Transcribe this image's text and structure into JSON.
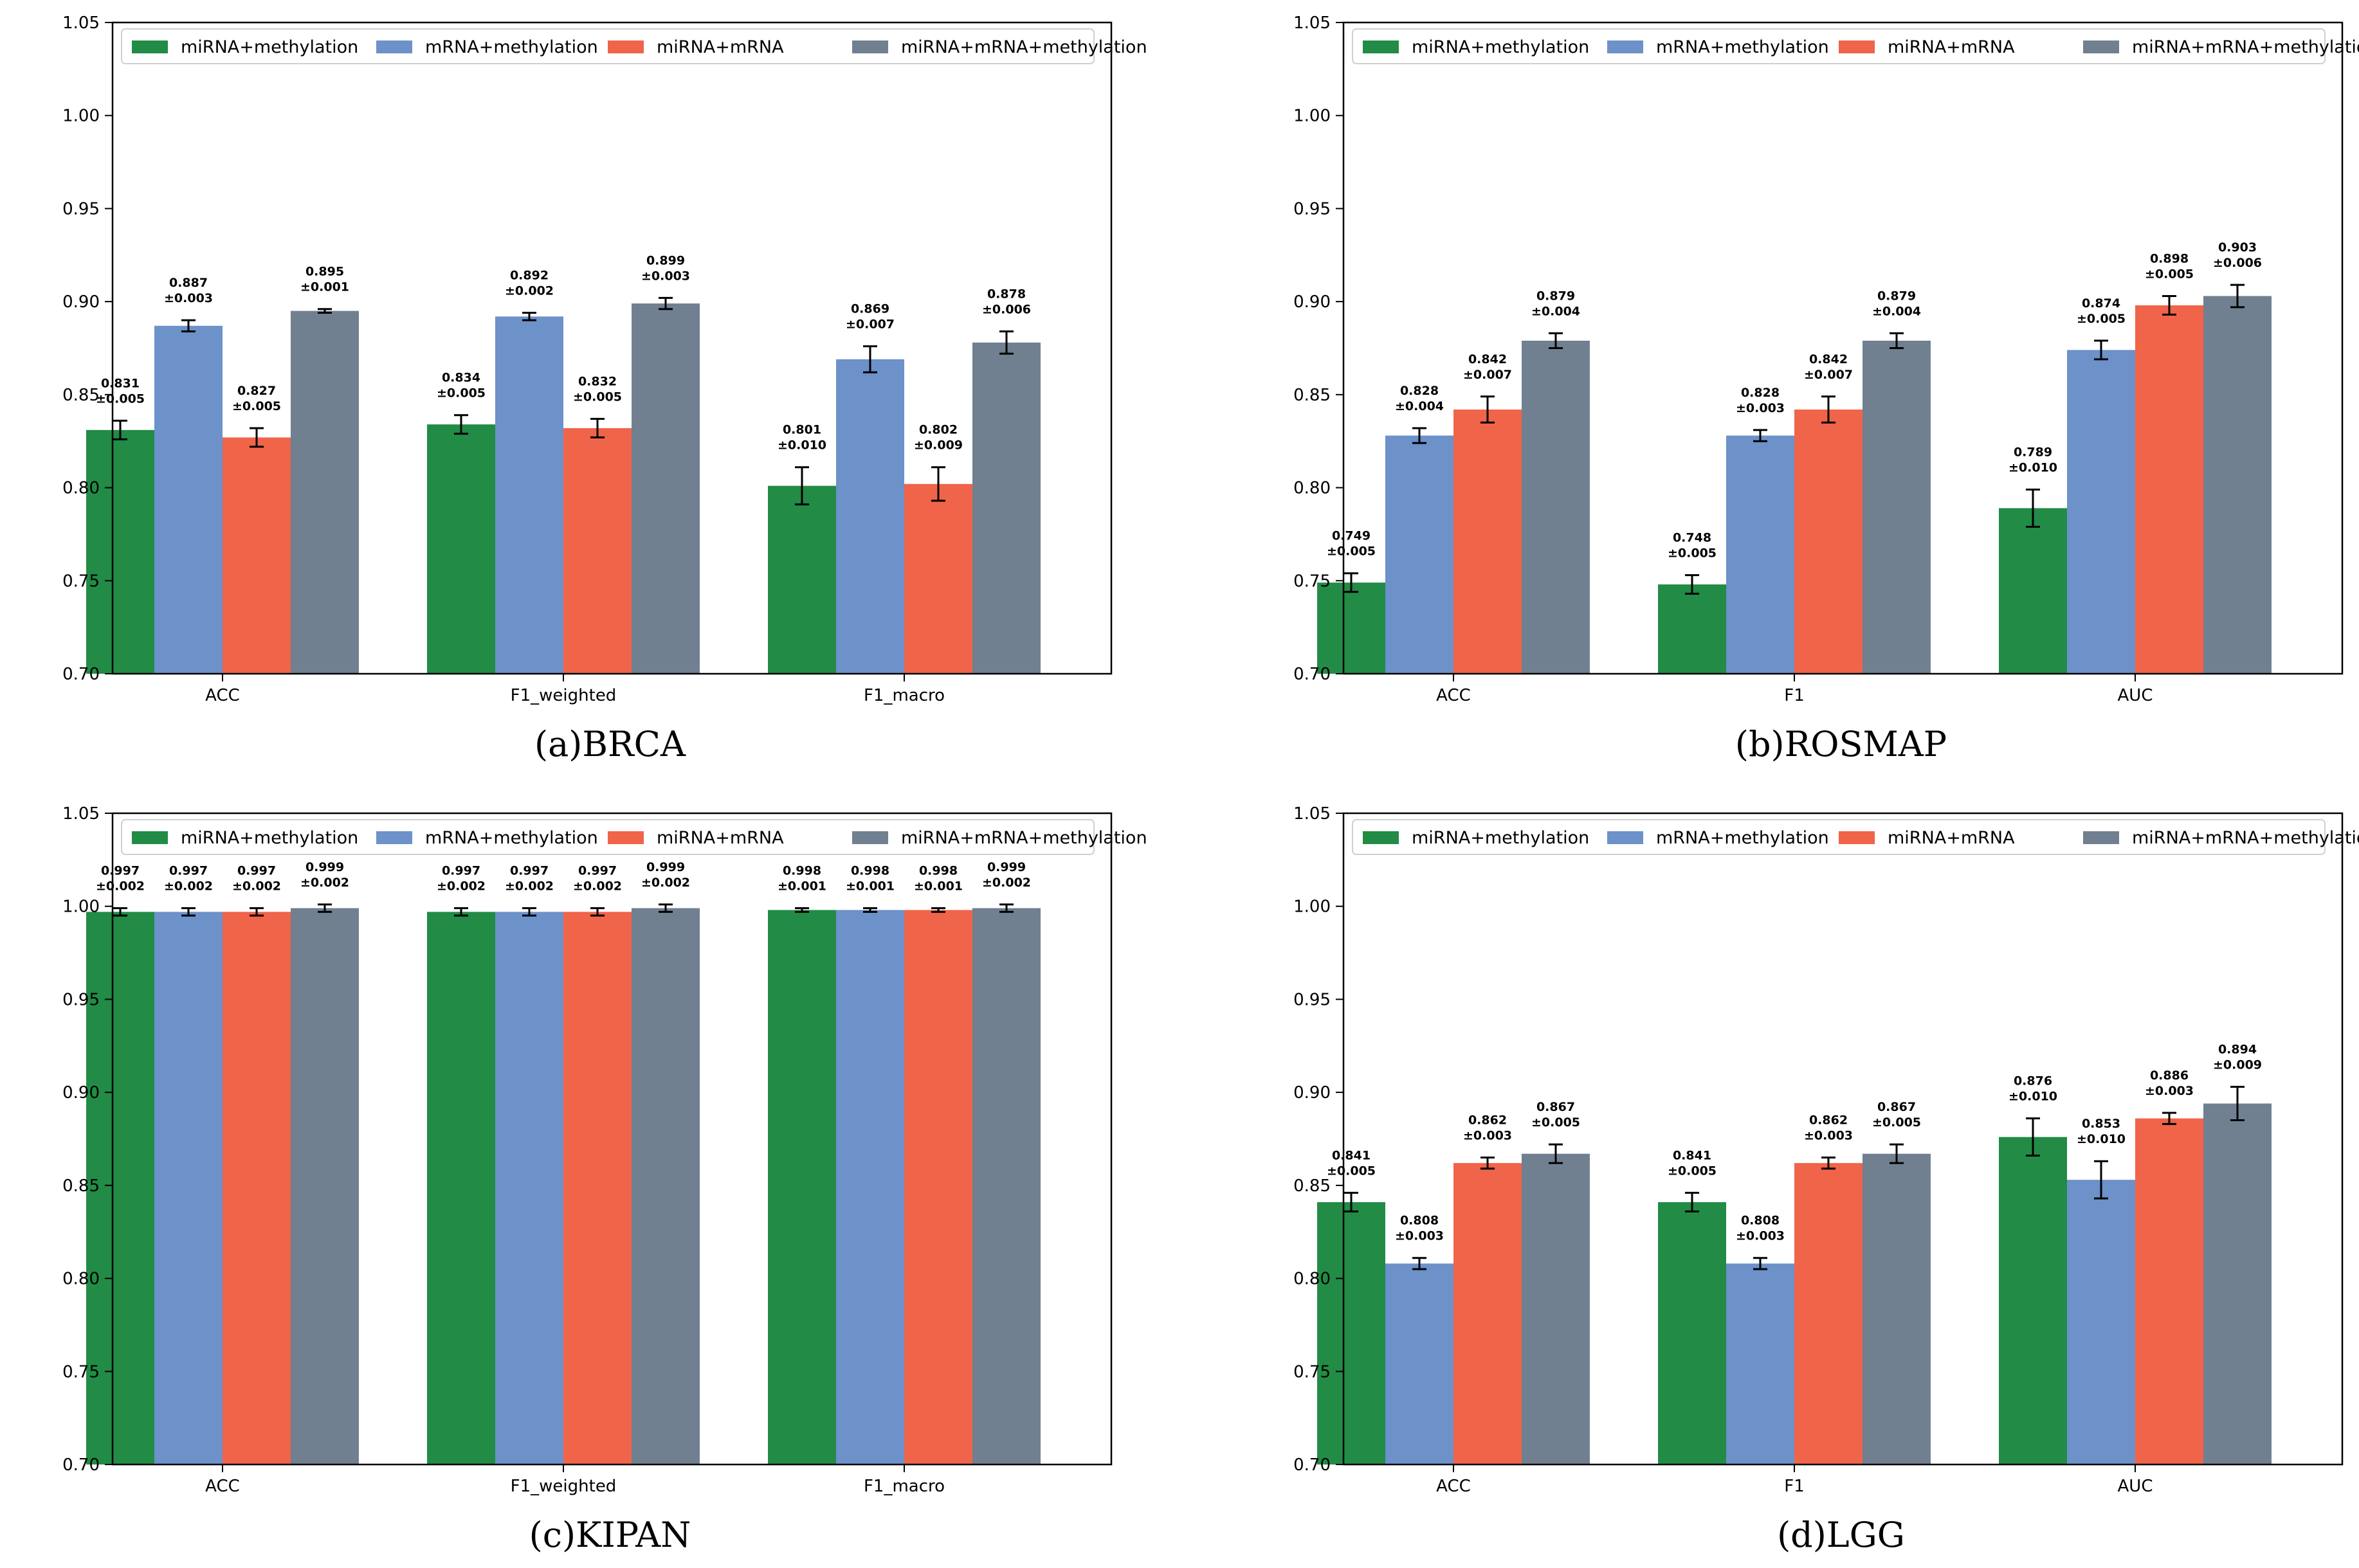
{
  "colors": {
    "series": [
      "#228b46",
      "#6d91c9",
      "#f0644a",
      "#708090"
    ],
    "axis": "#000000",
    "error_bar": "#000000"
  },
  "chart_data": [
    {
      "type": "bar",
      "caption": "(a)BRCA",
      "categories": [
        "ACC",
        "F1_weighted",
        "F1_macro"
      ],
      "ylim": [
        0.7,
        1.05
      ],
      "yticks": [
        "0.70",
        "0.75",
        "0.80",
        "0.85",
        "0.90",
        "0.95",
        "1.00",
        "1.05"
      ],
      "legend": "top",
      "series": [
        {
          "name": "miRNA+methylation",
          "values": [
            0.831,
            0.834,
            0.801
          ],
          "errors": [
            0.005,
            0.005,
            0.01
          ],
          "label_val": [
            "0.831",
            "0.834",
            "0.801"
          ],
          "label_err": [
            "±0.005",
            "±0.005",
            "±0.010"
          ]
        },
        {
          "name": "mRNA+methylation",
          "values": [
            0.887,
            0.892,
            0.869
          ],
          "errors": [
            0.003,
            0.002,
            0.007
          ],
          "label_val": [
            "0.887",
            "0.892",
            "0.869"
          ],
          "label_err": [
            "±0.003",
            "±0.002",
            "±0.007"
          ]
        },
        {
          "name": "miRNA+mRNA",
          "values": [
            0.827,
            0.832,
            0.802
          ],
          "errors": [
            0.005,
            0.005,
            0.009
          ],
          "label_val": [
            "0.827",
            "0.832",
            "0.802"
          ],
          "label_err": [
            "±0.005",
            "±0.005",
            "±0.009"
          ]
        },
        {
          "name": "miRNA+mRNA+methylation",
          "values": [
            0.895,
            0.899,
            0.878
          ],
          "errors": [
            0.001,
            0.003,
            0.006
          ],
          "label_val": [
            "0.895",
            "0.899",
            "0.878"
          ],
          "label_err": [
            "±0.001",
            "±0.003",
            "±0.006"
          ]
        }
      ]
    },
    {
      "type": "bar",
      "caption": "(b)ROSMAP",
      "categories": [
        "ACC",
        "F1",
        "AUC"
      ],
      "ylim": [
        0.7,
        1.05
      ],
      "yticks": [
        "0.70",
        "0.75",
        "0.80",
        "0.85",
        "0.90",
        "0.95",
        "1.00",
        "1.05"
      ],
      "legend": "top",
      "series": [
        {
          "name": "miRNA+methylation",
          "values": [
            0.749,
            0.748,
            0.789
          ],
          "errors": [
            0.005,
            0.005,
            0.01
          ],
          "label_val": [
            "0.749",
            "0.748",
            "0.789"
          ],
          "label_err": [
            "±0.005",
            "±0.005",
            "±0.010"
          ]
        },
        {
          "name": "mRNA+methylation",
          "values": [
            0.828,
            0.828,
            0.874
          ],
          "errors": [
            0.004,
            0.003,
            0.005
          ],
          "label_val": [
            "0.828",
            "0.828",
            "0.874"
          ],
          "label_err": [
            "±0.004",
            "±0.003",
            "±0.005"
          ]
        },
        {
          "name": "miRNA+mRNA",
          "values": [
            0.842,
            0.842,
            0.898
          ],
          "errors": [
            0.007,
            0.007,
            0.005
          ],
          "label_val": [
            "0.842",
            "0.842",
            "0.898"
          ],
          "label_err": [
            "±0.007",
            "±0.007",
            "±0.005"
          ]
        },
        {
          "name": "miRNA+mRNA+methylation",
          "values": [
            0.879,
            0.879,
            0.903
          ],
          "errors": [
            0.004,
            0.004,
            0.006
          ],
          "label_val": [
            "0.879",
            "0.879",
            "0.903"
          ],
          "label_err": [
            "±0.004",
            "±0.004",
            "±0.006"
          ]
        }
      ]
    },
    {
      "type": "bar",
      "caption": "(c)KIPAN",
      "categories": [
        "ACC",
        "F1_weighted",
        "F1_macro"
      ],
      "ylim": [
        0.7,
        1.05
      ],
      "yticks": [
        "0.70",
        "0.75",
        "0.80",
        "0.85",
        "0.90",
        "0.95",
        "1.00",
        "1.05"
      ],
      "legend": "top",
      "series": [
        {
          "name": "miRNA+methylation",
          "values": [
            0.997,
            0.997,
            0.998
          ],
          "errors": [
            0.002,
            0.002,
            0.001
          ],
          "label_val": [
            "0.997",
            "0.997",
            "0.998"
          ],
          "label_err": [
            "±0.002",
            "±0.002",
            "±0.001"
          ]
        },
        {
          "name": "mRNA+methylation",
          "values": [
            0.997,
            0.997,
            0.998
          ],
          "errors": [
            0.002,
            0.002,
            0.001
          ],
          "label_val": [
            "0.997",
            "0.997",
            "0.998"
          ],
          "label_err": [
            "±0.002",
            "±0.002",
            "±0.001"
          ]
        },
        {
          "name": "miRNA+mRNA",
          "values": [
            0.997,
            0.997,
            0.998
          ],
          "errors": [
            0.002,
            0.002,
            0.001
          ],
          "label_val": [
            "0.997",
            "0.997",
            "0.998"
          ],
          "label_err": [
            "±0.002",
            "±0.002",
            "±0.001"
          ]
        },
        {
          "name": "miRNA+mRNA+methylation",
          "values": [
            0.999,
            0.999,
            0.999
          ],
          "errors": [
            0.002,
            0.002,
            0.002
          ],
          "label_val": [
            "0.999",
            "0.999",
            "0.999"
          ],
          "label_err": [
            "±0.002",
            "±0.002",
            "±0.002"
          ]
        }
      ]
    },
    {
      "type": "bar",
      "caption": "(d)LGG",
      "categories": [
        "ACC",
        "F1",
        "AUC"
      ],
      "ylim": [
        0.7,
        1.05
      ],
      "yticks": [
        "0.70",
        "0.75",
        "0.80",
        "0.85",
        "0.90",
        "0.95",
        "1.00",
        "1.05"
      ],
      "legend": "top",
      "series": [
        {
          "name": "miRNA+methylation",
          "values": [
            0.841,
            0.841,
            0.876
          ],
          "errors": [
            0.005,
            0.005,
            0.01
          ],
          "label_val": [
            "0.841",
            "0.841",
            "0.876"
          ],
          "label_err": [
            "±0.005",
            "±0.005",
            "±0.010"
          ]
        },
        {
          "name": "mRNA+methylation",
          "values": [
            0.808,
            0.808,
            0.853
          ],
          "errors": [
            0.003,
            0.003,
            0.01
          ],
          "label_val": [
            "0.808",
            "0.808",
            "0.853"
          ],
          "label_err": [
            "±0.003",
            "±0.003",
            "±0.010"
          ]
        },
        {
          "name": "miRNA+mRNA",
          "values": [
            0.862,
            0.862,
            0.886
          ],
          "errors": [
            0.003,
            0.003,
            0.003
          ],
          "label_val": [
            "0.862",
            "0.862",
            "0.886"
          ],
          "label_err": [
            "±0.003",
            "±0.003",
            "±0.003"
          ]
        },
        {
          "name": "miRNA+mRNA+methylation",
          "values": [
            0.867,
            0.867,
            0.894
          ],
          "errors": [
            0.005,
            0.005,
            0.009
          ],
          "label_val": [
            "0.867",
            "0.867",
            "0.894"
          ],
          "label_err": [
            "±0.005",
            "±0.005",
            "±0.009"
          ]
        }
      ]
    }
  ]
}
